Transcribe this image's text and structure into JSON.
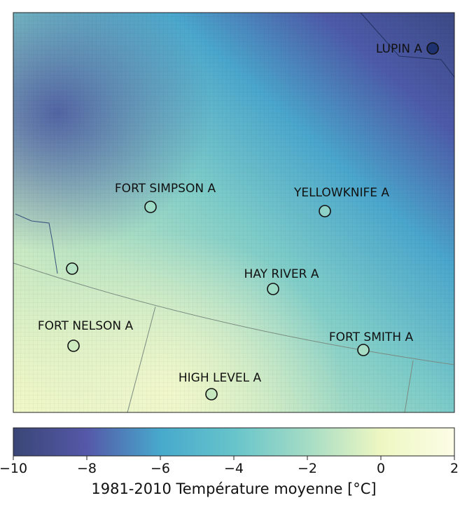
{
  "map": {
    "stations": [
      {
        "name": "LUPIN A",
        "fill": "#1f3270"
      },
      {
        "name": "FORT SIMPSON A",
        "fill": "#9ddbc6"
      },
      {
        "name": "YELLOWKNIFE A",
        "fill": "#8fd3c8"
      },
      {
        "name": "",
        "fill": "#b5e3c3"
      },
      {
        "name": "HAY RIVER A",
        "fill": "#9ddbc6"
      },
      {
        "name": "FORT NELSON A",
        "fill": "#cdebbf"
      },
      {
        "name": "FORT SMITH A",
        "fill": "#a6ddc4"
      },
      {
        "name": "HIGH LEVEL A",
        "fill": "#c6e8bf"
      }
    ]
  },
  "colorbar": {
    "title": "1981-2010 Température moyenne [°C]",
    "ticks": [
      "−10",
      "−8",
      "−6",
      "−4",
      "−2",
      "0",
      "2"
    ],
    "range": [
      -10,
      2
    ],
    "colors": [
      "#3a4676",
      "#5558a8",
      "#47a9cc",
      "#67c4cb",
      "#a5dcc5",
      "#eef7c2",
      "#fcfde6"
    ]
  }
}
